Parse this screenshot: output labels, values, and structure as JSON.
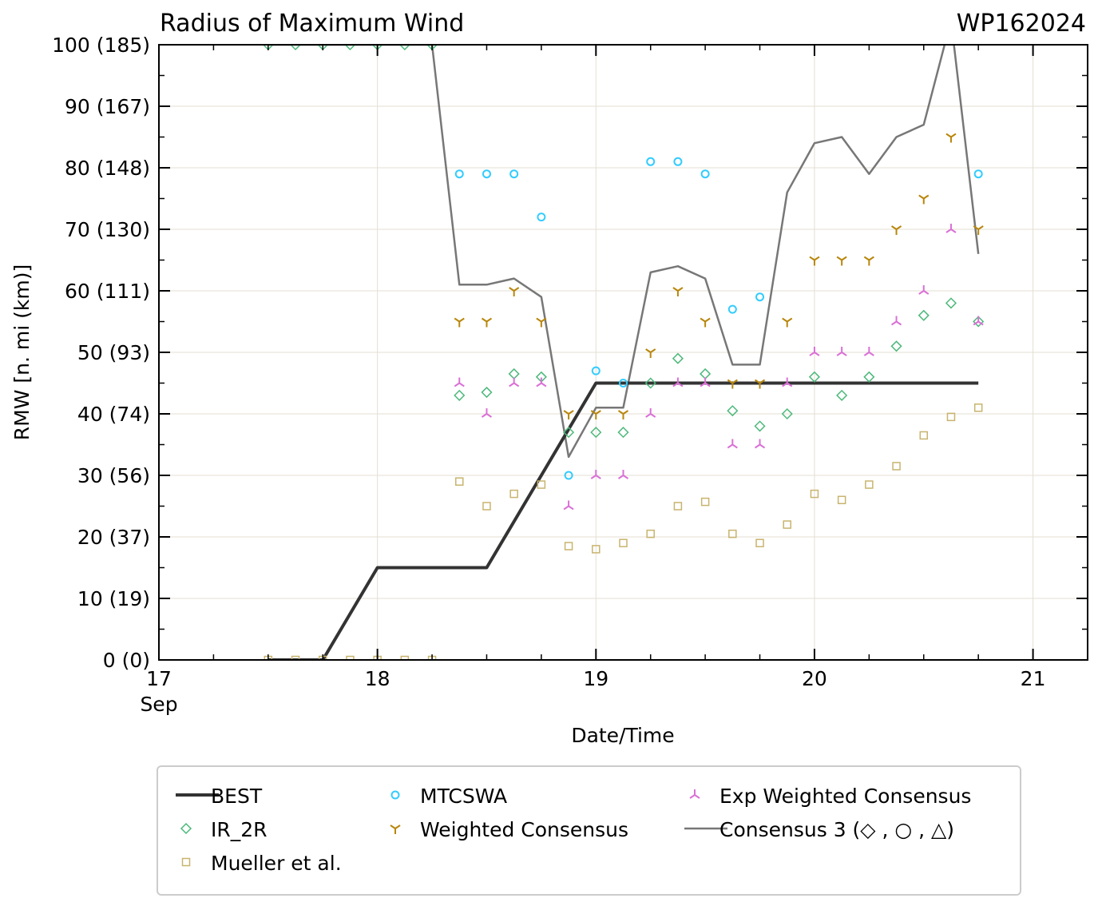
{
  "chart_data": {
    "type": "line",
    "title": "Radius of Maximum Wind",
    "storm_id": "WP162024",
    "xlabel": "Date/Time",
    "ylabel": "RMW [n. mi (km)]",
    "xlim": [
      17,
      21.25
    ],
    "ylim": [
      0,
      100
    ],
    "x_ticks": [
      {
        "v": 17,
        "label": "17",
        "sub": "Sep"
      },
      {
        "v": 18,
        "label": "18"
      },
      {
        "v": 19,
        "label": "19"
      },
      {
        "v": 20,
        "label": "20"
      },
      {
        "v": 21,
        "label": "21"
      }
    ],
    "y_ticks": [
      {
        "v": 0,
        "label": "0 (0)"
      },
      {
        "v": 10,
        "label": "10 (19)"
      },
      {
        "v": 20,
        "label": "20 (37)"
      },
      {
        "v": 30,
        "label": "30 (56)"
      },
      {
        "v": 40,
        "label": "40 (74)"
      },
      {
        "v": 50,
        "label": "50 (93)"
      },
      {
        "v": 60,
        "label": "60 (111)"
      },
      {
        "v": 70,
        "label": "70 (130)"
      },
      {
        "v": 80,
        "label": "80 (148)"
      },
      {
        "v": 90,
        "label": "90 (167)"
      },
      {
        "v": 100,
        "label": "100 (185)"
      }
    ],
    "grid": true,
    "legend_position": "bottom",
    "series": [
      {
        "name": "BEST",
        "kind": "line",
        "color": "#333333",
        "x": [
          17.5,
          17.75,
          18.0,
          18.5,
          19.0,
          20.75
        ],
        "y": [
          0,
          0,
          15,
          15,
          45,
          45
        ]
      },
      {
        "name": "IR_2R",
        "kind": "diamond",
        "color": "#4cb87a",
        "x": [
          17.5,
          17.625,
          17.75,
          17.875,
          18.0,
          18.125,
          18.25,
          18.375,
          18.5,
          18.625,
          18.75,
          18.875,
          19.0,
          19.125,
          19.25,
          19.375,
          19.5,
          19.625,
          19.75,
          19.875,
          20.0,
          20.125,
          20.25,
          20.375,
          20.5,
          20.625,
          20.75
        ],
        "y": [
          100,
          100,
          100,
          100,
          100,
          100,
          100,
          43,
          43.5,
          46.5,
          46,
          37,
          37,
          37,
          45,
          49,
          46.5,
          40.5,
          38,
          40,
          46,
          43,
          46,
          51,
          56,
          58,
          55
        ]
      },
      {
        "name": "Mueller et al.",
        "kind": "square",
        "color": "#c8b46e",
        "x": [
          17.5,
          17.625,
          17.75,
          17.875,
          18.0,
          18.125,
          18.25,
          18.375,
          18.5,
          18.625,
          18.75,
          18.875,
          19.0,
          19.125,
          19.25,
          19.375,
          19.5,
          19.625,
          19.75,
          19.875,
          20.0,
          20.125,
          20.25,
          20.375,
          20.5,
          20.625,
          20.75
        ],
        "y": [
          0,
          0,
          0,
          0,
          0,
          0,
          0,
          29,
          25,
          27,
          28.5,
          18.5,
          18,
          19,
          20.5,
          25,
          25.7,
          20.5,
          19,
          22,
          27,
          26,
          28.5,
          31.5,
          36.5,
          39.5,
          41
        ]
      },
      {
        "name": "MTCSWA",
        "kind": "circle",
        "color": "#33ccff",
        "x": [
          18.375,
          18.5,
          18.625,
          18.75,
          18.875,
          19.0,
          19.125,
          19.25,
          19.375,
          19.5,
          19.625,
          19.75,
          20.75
        ],
        "y": [
          79,
          79,
          79,
          72,
          30,
          47,
          45,
          81,
          81,
          79,
          57,
          59,
          79
        ]
      },
      {
        "name": "Weighted Consensus",
        "kind": "tri_down",
        "color": "#b8860b",
        "x": [
          18.375,
          18.5,
          18.625,
          18.75,
          18.875,
          19.0,
          19.125,
          19.25,
          19.375,
          19.5,
          19.625,
          19.75,
          19.875,
          20.0,
          20.125,
          20.25,
          20.375,
          20.5,
          20.625,
          20.75
        ],
        "y": [
          55,
          55,
          60,
          55,
          40,
          40,
          40,
          50,
          60,
          55,
          45,
          45,
          55,
          65,
          65,
          65,
          70,
          75,
          85,
          70
        ]
      },
      {
        "name": "Exp Weighted Consensus",
        "kind": "tri_up",
        "color": "#da70d6",
        "x": [
          18.375,
          18.5,
          18.625,
          18.75,
          18.875,
          19.0,
          19.125,
          19.25,
          19.375,
          19.5,
          19.625,
          19.75,
          19.875,
          20.0,
          20.125,
          20.25,
          20.375,
          20.5,
          20.625,
          20.75
        ],
        "y": [
          45,
          40,
          45,
          45,
          25,
          30,
          30,
          40,
          45,
          45,
          35,
          35,
          45,
          50,
          50,
          50,
          55,
          60,
          70,
          55
        ]
      },
      {
        "name": "Consensus 3 (◇ , ○ , △)",
        "kind": "line",
        "color": "#777777",
        "x": [
          17.5,
          17.625,
          17.75,
          17.875,
          18.0,
          18.125,
          18.25,
          18.375,
          18.5,
          18.625,
          18.75,
          18.875,
          19.0,
          19.125,
          19.25,
          19.375,
          19.5,
          19.625,
          19.75,
          19.875,
          20.0,
          20.125,
          20.25,
          20.375,
          20.5,
          20.625,
          20.75
        ],
        "y": [
          100,
          100,
          100,
          100,
          100,
          100,
          100,
          61,
          61,
          62,
          59,
          33,
          41,
          41,
          63,
          64,
          62,
          48,
          48,
          76,
          84,
          85,
          79,
          85,
          87,
          104,
          66
        ]
      }
    ],
    "legend_order": [
      0,
      1,
      2,
      3,
      4,
      5,
      6
    ]
  }
}
